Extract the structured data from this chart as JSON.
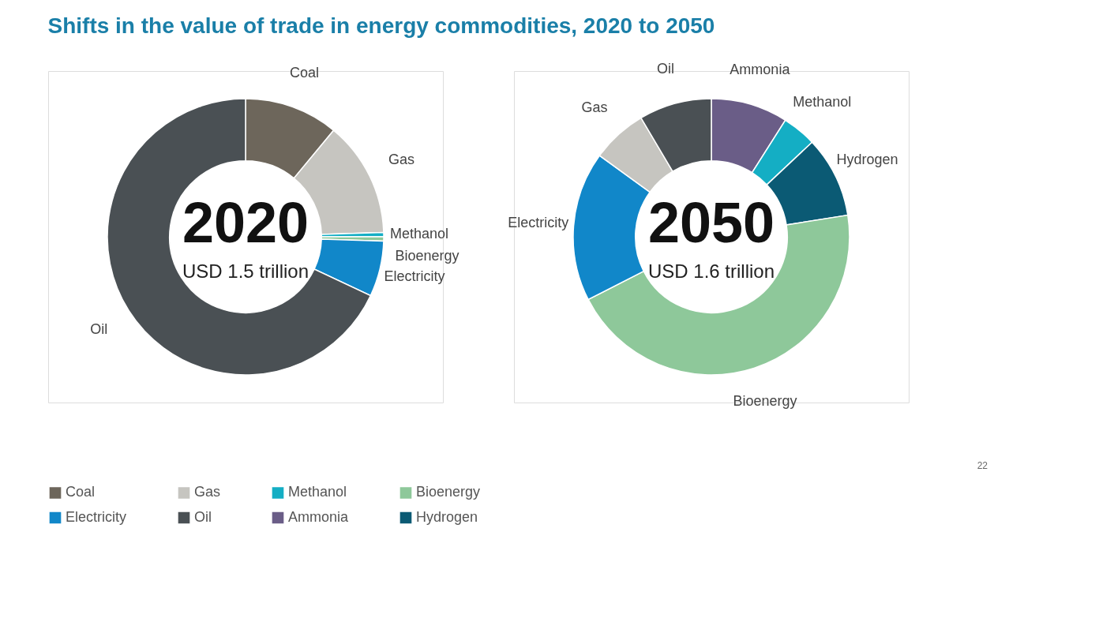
{
  "chart_data": [
    {
      "type": "donut",
      "title": "Shifts in the value of trade in energy commodities, 2020 to 2050",
      "categories": [
        "Coal",
        "Gas",
        "Methanol",
        "Bioenergy",
        "Electricity",
        "Oil"
      ],
      "values": [
        11,
        13.5,
        0.5,
        0.5,
        6.5,
        68
      ],
      "colors": [
        "#6d665b",
        "#c6c5c0",
        "#14aec4",
        "#8ec89a",
        "#1187c9",
        "#4a5054"
      ],
      "annotations": [
        "2020",
        "USD 1.5 trillion"
      ],
      "legend": "bottom"
    },
    {
      "type": "donut",
      "categories": [
        "Ammonia",
        "Methanol",
        "Hydrogen",
        "Bioenergy",
        "Electricity",
        "Gas",
        "Oil"
      ],
      "values": [
        9,
        4,
        9.5,
        45,
        17.5,
        6.5,
        8.5
      ],
      "colors": [
        "#6a5d87",
        "#14aec4",
        "#0b5a74",
        "#8ec89a",
        "#1187c9",
        "#c6c5c0",
        "#4a5054"
      ],
      "annotations": [
        "2050",
        "USD 1.6 trillion",
        "22"
      ],
      "legend": "bottom"
    }
  ]
}
